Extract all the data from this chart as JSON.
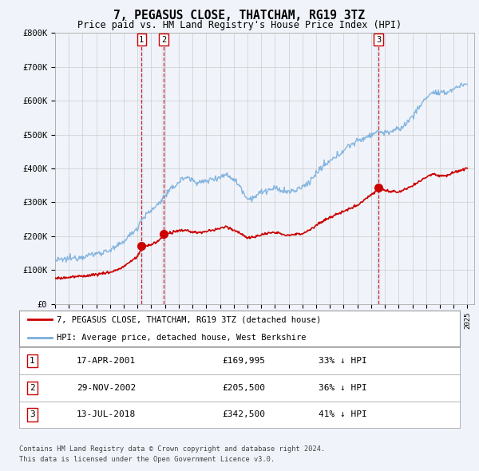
{
  "title": "7, PEGASUS CLOSE, THATCHAM, RG19 3TZ",
  "subtitle": "Price paid vs. HM Land Registry's House Price Index (HPI)",
  "ylim": [
    0,
    800000
  ],
  "yticks": [
    0,
    100000,
    200000,
    300000,
    400000,
    500000,
    600000,
    700000,
    800000
  ],
  "ytick_labels": [
    "£0",
    "£100K",
    "£200K",
    "£300K",
    "£400K",
    "£500K",
    "£600K",
    "£700K",
    "£800K"
  ],
  "xlim_start": 1995.0,
  "xlim_end": 2025.5,
  "sale_events": [
    {
      "label": "1",
      "date": "17-APR-2001",
      "year": 2001.29,
      "price": 169995,
      "price_str": "£169,995",
      "pct": "33%",
      "dir": "↓"
    },
    {
      "label": "2",
      "date": "29-NOV-2002",
      "year": 2002.91,
      "price": 205500,
      "price_str": "£205,500",
      "pct": "36%",
      "dir": "↓"
    },
    {
      "label": "3",
      "date": "13-JUL-2018",
      "year": 2018.54,
      "price": 342500,
      "price_str": "£342,500",
      "pct": "41%",
      "dir": "↓"
    }
  ],
  "red_line_color": "#cc0000",
  "blue_line_color": "#7aaedc",
  "vline_color": "#cc0000",
  "vspan_color": "#d0e0f0",
  "legend_red_label": "7, PEGASUS CLOSE, THATCHAM, RG19 3TZ (detached house)",
  "legend_blue_label": "HPI: Average price, detached house, West Berkshire",
  "footer1": "Contains HM Land Registry data © Crown copyright and database right 2024.",
  "footer2": "This data is licensed under the Open Government Licence v3.0.",
  "bg_color": "#f0f4fa",
  "plot_bg_color": "#f0f4fa",
  "grid_color": "#cccccc"
}
